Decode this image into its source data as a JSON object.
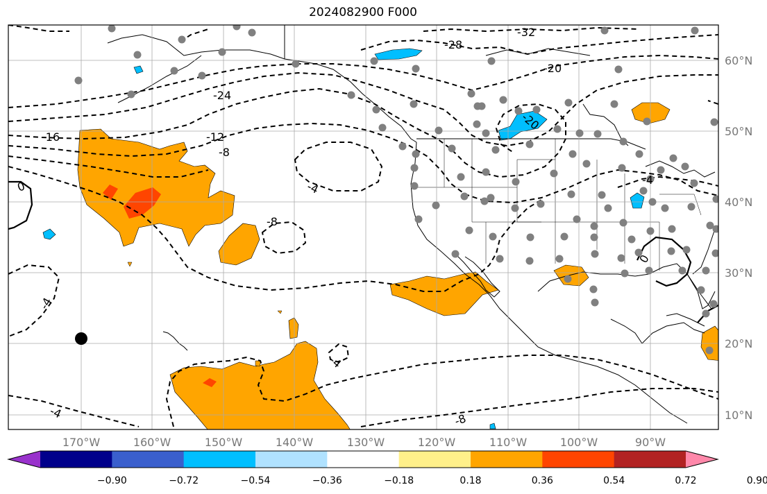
{
  "title": "2024082900 F000",
  "longitude_ticks": [
    "170°W",
    "160°W",
    "150°W",
    "140°W",
    "130°W",
    "120°W",
    "110°W",
    "100°W",
    "90°W"
  ],
  "latitude_ticks": [
    "60°N",
    "50°N",
    "40°N",
    "30°N",
    "20°N",
    "10°N"
  ],
  "colorbar": {
    "colors": [
      "#9932cc",
      "#00008b",
      "#3a5fcd",
      "#00bfff",
      "#b0e2ff",
      "#ffffff",
      "#fff08a",
      "#ffa500",
      "#ff4500",
      "#b22222",
      "#ff88aa"
    ],
    "labels": [
      "−0.90",
      "−0.72",
      "−0.54",
      "−0.36",
      "−0.18",
      "0.18",
      "0.36",
      "0.54",
      "0.72",
      "0.90"
    ]
  },
  "contour_labels": [
    "-32",
    "-28",
    "-20",
    "-24",
    "-16",
    "-12",
    "-8",
    "-20",
    "-4",
    "-8",
    "0",
    "-4",
    "0",
    "-4",
    "-4",
    "-8",
    "-4"
  ],
  "colors": {
    "contour": "#000000",
    "positive_fill": "#ffa500",
    "positive_strong": "#ff4500",
    "negative_fill": "#00bfff",
    "station": "#808080",
    "grid": "#aaaaaa"
  }
}
